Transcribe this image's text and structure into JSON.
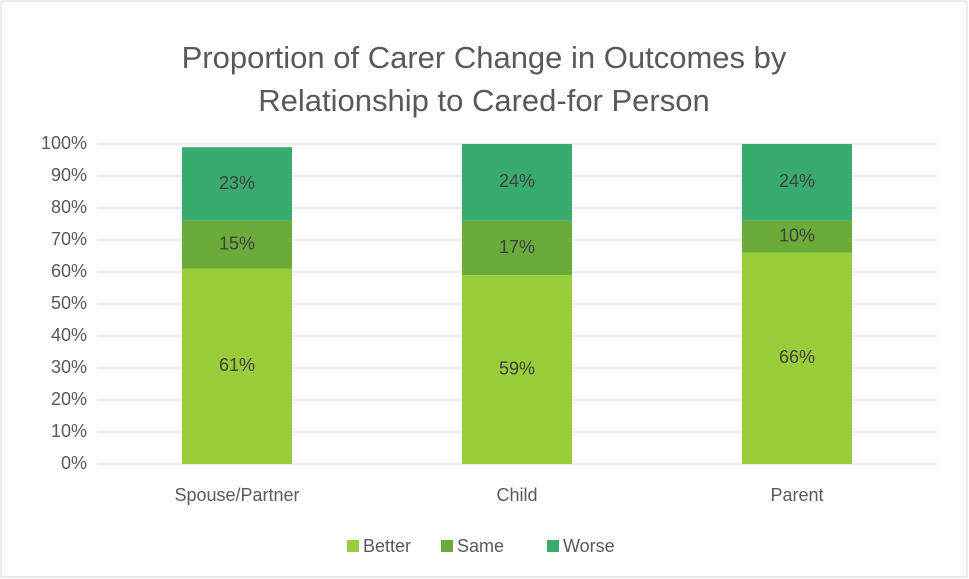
{
  "chart_data": {
    "type": "stacked_bar",
    "title": [
      "Proportion of Carer Change in Outcomes by",
      "Relationship to Cared-for Person"
    ],
    "categories": [
      "Spouse/Partner",
      "Child",
      "Parent"
    ],
    "series": [
      {
        "name": "Better",
        "color": "#9acd3a",
        "values": [
          61,
          59,
          66
        ],
        "value_labels": [
          "61%",
          "59%",
          "66%"
        ]
      },
      {
        "name": "Same",
        "color": "#6aab3a",
        "values": [
          15,
          17,
          10
        ],
        "value_labels": [
          "15%",
          "17%",
          "10%"
        ]
      },
      {
        "name": "Worse",
        "color": "#3aab6e",
        "values": [
          23,
          24,
          24
        ],
        "value_labels": [
          "23%",
          "24%",
          "24%"
        ]
      }
    ],
    "ylim": [
      0,
      100
    ],
    "yticks": [
      {
        "value": 0,
        "label": "0%"
      },
      {
        "value": 10,
        "label": "10%"
      },
      {
        "value": 20,
        "label": "20%"
      },
      {
        "value": 30,
        "label": "30%"
      },
      {
        "value": 40,
        "label": "40%"
      },
      {
        "value": 50,
        "label": "50%"
      },
      {
        "value": 60,
        "label": "60%"
      },
      {
        "value": 70,
        "label": "70%"
      },
      {
        "value": 80,
        "label": "80%"
      },
      {
        "value": 90,
        "label": "90%"
      },
      {
        "value": 100,
        "label": "100%"
      }
    ],
    "grid": true,
    "legend": "bottom"
  }
}
